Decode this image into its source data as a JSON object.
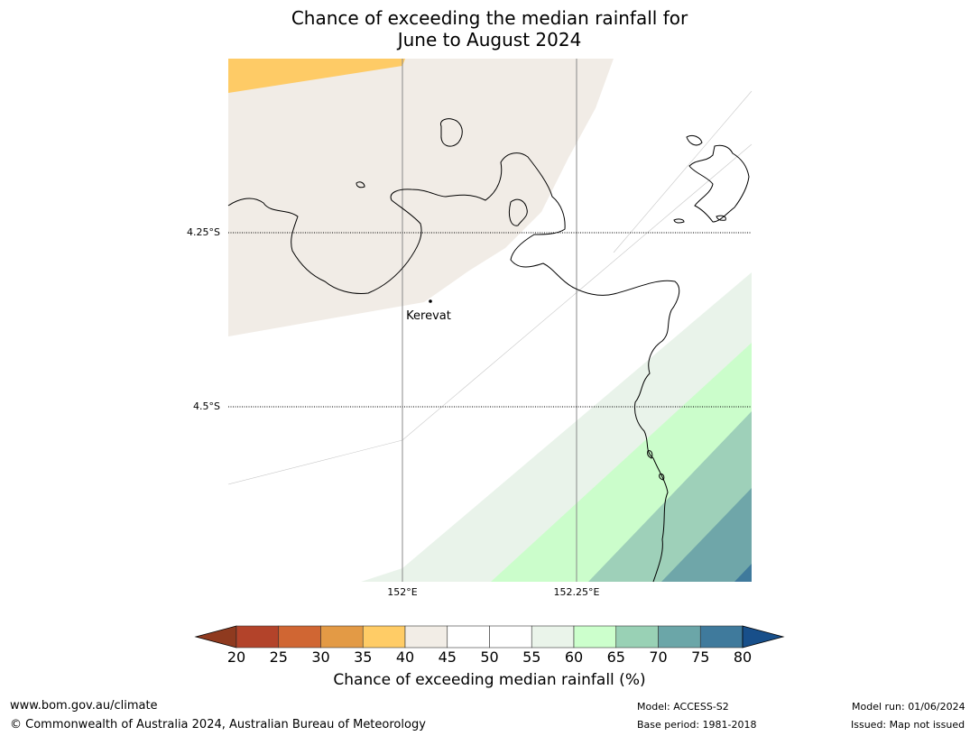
{
  "title": {
    "line1": "Chance of exceeding the median rainfall for",
    "line2": "June to August 2024"
  },
  "map": {
    "place": "Kerevat",
    "lat_labels": [
      "4.25°S",
      "4.5°S"
    ],
    "lon_labels": [
      "152°E",
      "152.25°E"
    ]
  },
  "colorbar": {
    "title": "Chance of exceeding median rainfall (%)",
    "ticks": [
      "20",
      "25",
      "30",
      "35",
      "40",
      "45",
      "50",
      "55",
      "60",
      "65",
      "70",
      "75",
      "80"
    ],
    "colors": [
      "#8f3a1f",
      "#b3432a",
      "#d06633",
      "#e39a45",
      "#ffcc66",
      "#f2ede6",
      "#ffffff",
      "#ffffff",
      "#eaf4ea",
      "#ccffcc",
      "#99d1b5",
      "#6ba6a8",
      "#3f7a9c",
      "#184f8a"
    ]
  },
  "footer": {
    "site": "www.bom.gov.au/climate",
    "copyright": "© Commonwealth of Australia 2024, Australian Bureau of Meteorology",
    "model": "Model: ACCESS-S2",
    "base_period": "Base period: 1981-2018",
    "model_run": "Model run: 01/06/2024",
    "issued": "Issued: Map not issued"
  }
}
